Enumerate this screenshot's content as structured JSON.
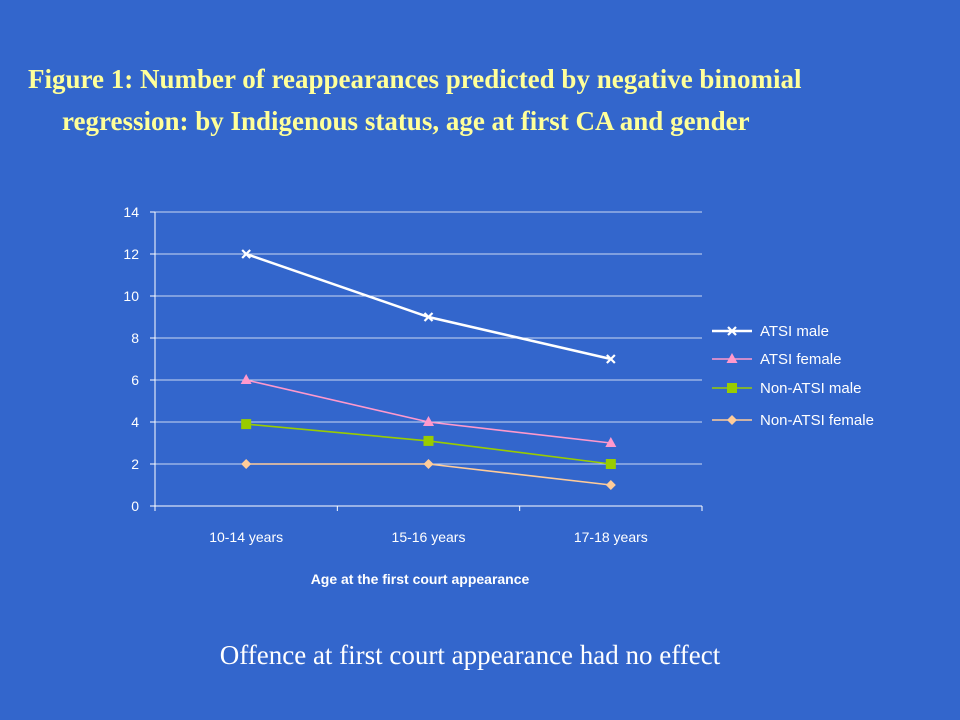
{
  "slide": {
    "title_line1": "Figure 1: Number of reappearances predicted by negative binomial",
    "title_line2": "regression: by Indigenous status, age at first CA and gender",
    "footnote": "Offence at first court appearance had no effect"
  },
  "chart_data": {
    "type": "line",
    "categories": [
      "10-14 years",
      "15-16 years",
      "17-18 years"
    ],
    "xlabel": "Age at the first court appearance",
    "ylabel": "",
    "ylim": [
      0,
      14
    ],
    "yticks": [
      0,
      2,
      4,
      6,
      8,
      10,
      12,
      14
    ],
    "grid": true,
    "legend": "right",
    "series": [
      {
        "name": "ATSI male",
        "values": [
          12,
          9,
          7
        ],
        "color": "#ffffff",
        "marker": "x"
      },
      {
        "name": "ATSI female",
        "values": [
          6,
          4,
          3
        ],
        "color": "#ff99cc",
        "marker": "triangle"
      },
      {
        "name": "Non-ATSI male",
        "values": [
          3.9,
          3.1,
          2
        ],
        "color": "#99cc00",
        "marker": "square"
      },
      {
        "name": "Non-ATSI female",
        "values": [
          2,
          2,
          1
        ],
        "color": "#ffcc99",
        "marker": "diamond"
      }
    ]
  }
}
